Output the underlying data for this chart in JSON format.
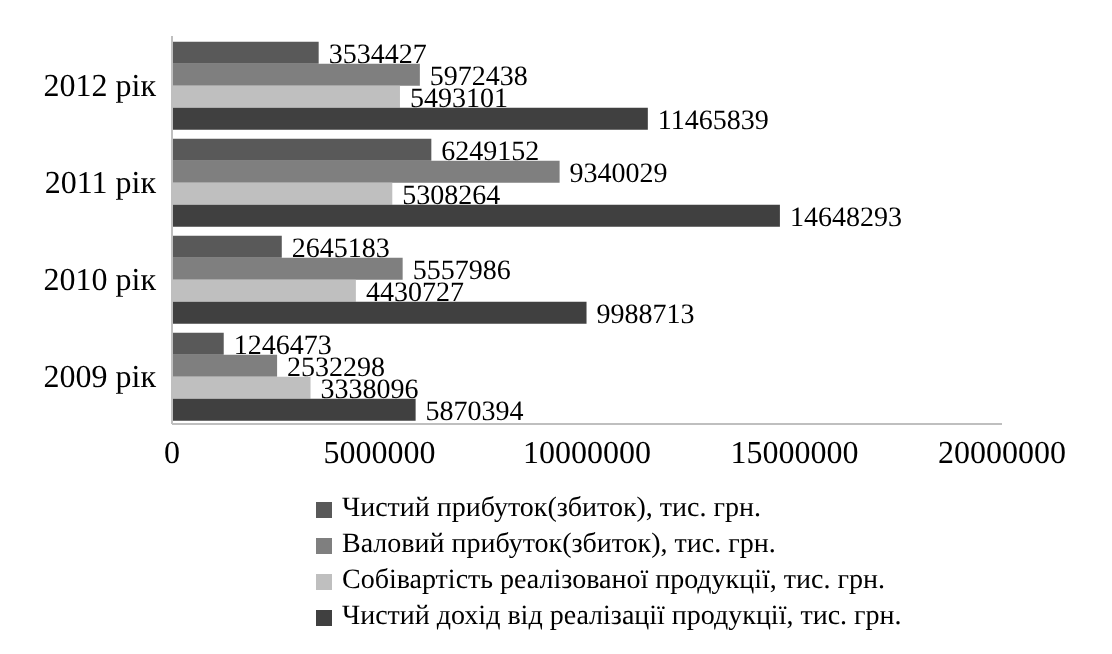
{
  "chart_data": {
    "type": "bar",
    "orientation": "horizontal",
    "categories": [
      "2012 рік",
      "2011 рік",
      "2010 рік",
      "2009 рік"
    ],
    "series": [
      {
        "name": "Чистий прибуток(збиток), тис. грн.",
        "color": "#595959",
        "values": [
          3534427,
          6249152,
          2645183,
          1246473
        ]
      },
      {
        "name": "Валовий прибуток(збиток), тис. грн.",
        "color": "#7f7f7f",
        "values": [
          5972438,
          9340029,
          5557986,
          2532298
        ]
      },
      {
        "name": "Собівартість реалізованої продукції, тис. грн.",
        "color": "#bfbfbf",
        "values": [
          5493101,
          5308264,
          4430727,
          3338096
        ]
      },
      {
        "name": "Чистий дохід від реалізації продукції, тис. грн.",
        "color": "#404040",
        "values": [
          11465839,
          14648293,
          9988713,
          5870394
        ]
      }
    ],
    "xlim": [
      0,
      20000000
    ],
    "xticks": [
      0,
      5000000,
      10000000,
      15000000,
      20000000
    ],
    "data_labels": true,
    "legend": "bottom",
    "grid": false
  }
}
